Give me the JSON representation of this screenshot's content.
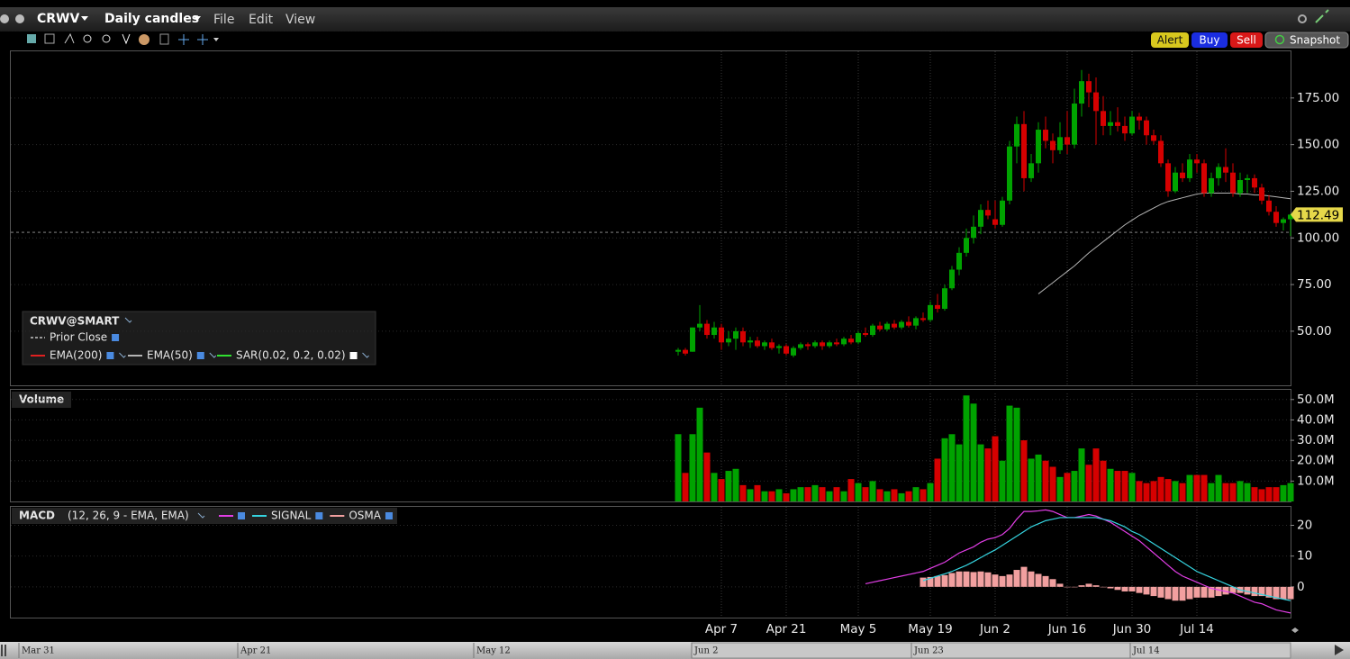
{
  "ui": {
    "symbol": "CRWV",
    "bar_type": "Daily candles",
    "menu": [
      "File",
      "Edit",
      "View"
    ],
    "buttons": [
      "Alert",
      "Buy",
      "Sell",
      "Snapshot"
    ],
    "navigator_labels": [
      "Mar 31",
      "Apr 21",
      "May 12",
      "Jun 2",
      "Jun 23",
      "Jul 14"
    ]
  },
  "chart_data": [
    {
      "type": "candlestick",
      "title": "CRWV@SMART",
      "categories": [
        null,
        null,
        null,
        null,
        null,
        null,
        "Apr 7",
        null,
        null,
        null,
        null,
        null,
        null,
        null,
        null,
        "Apr 21",
        null,
        null,
        null,
        null,
        null,
        null,
        null,
        null,
        null,
        "May 5",
        null,
        null,
        null,
        null,
        null,
        null,
        null,
        null,
        null,
        "May 19",
        null,
        null,
        null,
        null,
        null,
        null,
        null,
        null,
        "Jun 2",
        null,
        null,
        null,
        null,
        null,
        null,
        null,
        null,
        null,
        "Jun 16",
        null,
        null,
        null,
        null,
        null,
        null,
        null,
        null,
        "Jun 30",
        null,
        null,
        null,
        null,
        null,
        null,
        null,
        null,
        "Jul 14",
        null,
        null,
        null,
        null,
        null,
        null,
        null,
        null,
        null,
        null,
        null,
        null,
        null
      ],
      "open": [
        39,
        40,
        39,
        52,
        54,
        48,
        52,
        44,
        46,
        50,
        44,
        45,
        42,
        44,
        41,
        42,
        37,
        41,
        43,
        42,
        44,
        42,
        44,
        43,
        46,
        44,
        49,
        48,
        53,
        51,
        54,
        52,
        55,
        53,
        57,
        56,
        64,
        62,
        73,
        83,
        92,
        100,
        106,
        115,
        110,
        107,
        120,
        149,
        161,
        132,
        140,
        158,
        152,
        147,
        154,
        150,
        172,
        184,
        178,
        168,
        160,
        162,
        160,
        156,
        165,
        163,
        155,
        152,
        140,
        125,
        135,
        132,
        142,
        140,
        124,
        132,
        138,
        135,
        124,
        131,
        132,
        127,
        120,
        114,
        108,
        110
      ],
      "high": [
        41,
        41,
        52,
        64,
        56,
        55,
        54,
        50,
        52,
        52,
        47,
        47,
        45,
        46,
        43,
        43,
        42,
        44,
        44,
        45,
        45,
        45,
        46,
        47,
        48,
        50,
        52,
        54,
        55,
        55,
        56,
        56,
        58,
        58,
        60,
        66,
        70,
        75,
        85,
        95,
        105,
        112,
        118,
        120,
        120,
        122,
        152,
        165,
        168,
        145,
        162,
        165,
        156,
        162,
        168,
        180,
        190,
        188,
        186,
        176,
        168,
        170,
        165,
        168,
        167,
        165,
        158,
        155,
        142,
        138,
        140,
        145,
        145,
        142,
        135,
        140,
        148,
        140,
        135,
        134,
        134,
        129,
        123,
        117,
        111,
        113
      ],
      "low": [
        37,
        37,
        39,
        50,
        46,
        46,
        40,
        42,
        40,
        42,
        41,
        41,
        40,
        40,
        38,
        37,
        36,
        40,
        40,
        41,
        40,
        41,
        42,
        42,
        43,
        43,
        47,
        47,
        50,
        50,
        51,
        51,
        52,
        51,
        55,
        55,
        60,
        61,
        72,
        80,
        90,
        97,
        102,
        110,
        105,
        106,
        118,
        140,
        125,
        130,
        135,
        148,
        140,
        145,
        145,
        148,
        165,
        170,
        150,
        155,
        155,
        157,
        152,
        155,
        158,
        150,
        150,
        138,
        122,
        124,
        130,
        130,
        135,
        122,
        122,
        128,
        130,
        122,
        122,
        124,
        124,
        118,
        112,
        106,
        104,
        101
      ],
      "close": [
        40,
        38,
        52,
        54,
        48,
        52,
        44,
        46,
        50,
        44,
        45,
        42,
        44,
        41,
        42,
        38,
        41,
        43,
        42,
        44,
        42,
        44,
        43,
        46,
        44,
        49,
        48,
        53,
        51,
        54,
        52,
        55,
        53,
        57,
        56,
        64,
        62,
        73,
        83,
        92,
        100,
        106,
        115,
        112,
        107,
        120,
        149,
        161,
        132,
        140,
        158,
        152,
        147,
        154,
        150,
        172,
        184,
        178,
        168,
        160,
        162,
        160,
        156,
        165,
        163,
        155,
        152,
        140,
        125,
        135,
        132,
        142,
        140,
        124,
        132,
        138,
        135,
        124,
        131,
        132,
        127,
        120,
        114,
        108,
        110,
        112.49
      ],
      "up_color": "#00a300",
      "down_color": "#d60000",
      "last_price": 112.49,
      "last_price_color": "#e6d84a",
      "overlays": [
        {
          "name": "Prior Close",
          "color": "#9a9a9a",
          "value": 103
        },
        {
          "name": "EMA(200)",
          "color": "#e02020"
        },
        {
          "name": "EMA(50)",
          "color": "#b4b4b4",
          "values": [
            null,
            null,
            null,
            null,
            null,
            null,
            null,
            null,
            null,
            null,
            null,
            null,
            null,
            null,
            null,
            null,
            null,
            null,
            null,
            null,
            null,
            null,
            null,
            null,
            null,
            null,
            null,
            null,
            null,
            null,
            null,
            null,
            null,
            null,
            null,
            null,
            null,
            null,
            null,
            null,
            null,
            null,
            null,
            null,
            null,
            null,
            null,
            null,
            null,
            null,
            70,
            73,
            76,
            79,
            82,
            85,
            88.5,
            92,
            95,
            98,
            101,
            104,
            107,
            109.5,
            112,
            114,
            116,
            118,
            119.5,
            120.5,
            121.5,
            122.5,
            123.5,
            124,
            124,
            124,
            124,
            124,
            123.5,
            123.5,
            123,
            123,
            122.5,
            122,
            121.5,
            121
          ]
        },
        {
          "name": "SAR(0.02, 0.2, 0.02)",
          "color": "#30e030"
        }
      ],
      "ylim": [
        21,
        200
      ],
      "yticks": [
        {
          "value": 50,
          "label": "50.00"
        },
        {
          "value": 75,
          "label": "75.00"
        },
        {
          "value": 100,
          "label": "100.00"
        },
        {
          "value": 125,
          "label": "125.00"
        },
        {
          "value": 150,
          "label": "150.00"
        },
        {
          "value": 175,
          "label": "175.00"
        }
      ]
    },
    {
      "type": "bar",
      "title": "Volume",
      "values": [
        33000000,
        14000000,
        33000000,
        46000000,
        24000000,
        14000000,
        11000000,
        15000000,
        16000000,
        8000000,
        6000000,
        8000000,
        5000000,
        5000000,
        6000000,
        4000000,
        6000000,
        7000000,
        7000000,
        8000000,
        7000000,
        5000000,
        7000000,
        5000000,
        11000000,
        9000000,
        7000000,
        10000000,
        6000000,
        5000000,
        6000000,
        4000000,
        5000000,
        7000000,
        6000000,
        9000000,
        21000000,
        31000000,
        33000000,
        28000000,
        52000000,
        48000000,
        28000000,
        26000000,
        32000000,
        20000000,
        47000000,
        46000000,
        30000000,
        21000000,
        23000000,
        20000000,
        17000000,
        12000000,
        14000000,
        15000000,
        26000000,
        18000000,
        26000000,
        20000000,
        16000000,
        15000000,
        15000000,
        14000000,
        10000000,
        9000000,
        10000000,
        12000000,
        11000000,
        10000000,
        9000000,
        13000000,
        13000000,
        13000000,
        9000000,
        13000000,
        9000000,
        9000000,
        10000000,
        9000000,
        7000000,
        6000000,
        7000000,
        7000000,
        8000000,
        9000000
      ],
      "up_color": "#00a300",
      "down_color": "#d60000",
      "ylim": [
        0,
        53000000
      ],
      "yticks": [
        {
          "value": 10000000,
          "label": "10.0M"
        },
        {
          "value": 20000000,
          "label": "20.0M"
        },
        {
          "value": 30000000,
          "label": "30.0M"
        },
        {
          "value": 40000000,
          "label": "40.0M"
        },
        {
          "value": 50000000,
          "label": "50.0M"
        }
      ]
    },
    {
      "type": "line",
      "title": "MACD",
      "subtitle": "(12, 26, 9 - EMA, EMA)",
      "series": [
        {
          "color": "#e23ee6",
          "values": [
            null,
            null,
            null,
            null,
            null,
            null,
            null,
            null,
            null,
            null,
            null,
            null,
            null,
            null,
            null,
            null,
            null,
            null,
            null,
            null,
            null,
            null,
            null,
            null,
            null,
            null,
            1,
            1.5,
            2,
            2.5,
            3,
            3.5,
            4,
            4.5,
            5,
            6,
            7,
            8,
            9.5,
            11,
            12,
            13,
            14.5,
            15.5,
            16,
            17,
            19,
            22,
            24.5,
            24.5,
            24.7,
            25,
            24.5,
            23.5,
            22.5,
            22.5,
            23,
            23.5,
            23,
            22,
            21,
            19.5,
            18,
            16.5,
            15,
            13,
            11,
            9,
            7,
            5,
            3.5,
            2.5,
            1.5,
            0.5,
            -0.5,
            -1,
            -1.5,
            -2,
            -3,
            -4,
            -5,
            -5.5,
            -6.5,
            -7.5,
            -8,
            -8.5
          ]
        },
        {
          "name": "SIGNAL",
          "color": "#35d4e0",
          "values": [
            null,
            null,
            null,
            null,
            null,
            null,
            null,
            null,
            null,
            null,
            null,
            null,
            null,
            null,
            null,
            null,
            null,
            null,
            null,
            null,
            null,
            null,
            null,
            null,
            null,
            null,
            null,
            null,
            null,
            null,
            null,
            null,
            null,
            null,
            2,
            2.8,
            3.5,
            4.2,
            5,
            6,
            7,
            8.2,
            9.5,
            10.8,
            12,
            13.5,
            15,
            16.5,
            18,
            19.5,
            20.5,
            21.5,
            22,
            22.5,
            22.5,
            22.5,
            22.5,
            22.5,
            22.5,
            22,
            21.5,
            20.5,
            19.5,
            18,
            17,
            15.5,
            14,
            12.5,
            11,
            9.5,
            8,
            6.5,
            5,
            4,
            3,
            2,
            1,
            0,
            -1,
            -1.5,
            -2,
            -2.5,
            -3,
            -3.5,
            -4,
            -4.5
          ]
        },
        {
          "name": "OSMA",
          "color": "#f2a0a0",
          "type": "bar",
          "values": [
            null,
            null,
            null,
            null,
            null,
            null,
            null,
            null,
            null,
            null,
            null,
            null,
            null,
            null,
            null,
            null,
            null,
            null,
            null,
            null,
            null,
            null,
            null,
            null,
            null,
            null,
            null,
            null,
            null,
            null,
            null,
            null,
            null,
            null,
            3,
            3.2,
            3.5,
            3.8,
            4.5,
            5,
            5,
            4.8,
            5,
            4.7,
            4,
            3.5,
            4,
            5.5,
            6.5,
            5,
            4.2,
            3.5,
            2.5,
            1,
            0,
            0,
            0.5,
            1,
            0.5,
            0,
            -0.5,
            -1,
            -1.5,
            -1.5,
            -2,
            -2.5,
            -3,
            -3.5,
            -4,
            -4.5,
            -4.5,
            -4,
            -3.5,
            -3.5,
            -3.5,
            -3,
            -2.5,
            -2,
            -2,
            -2.5,
            -3,
            -3,
            -3.5,
            -4,
            -4,
            -4
          ]
        }
      ],
      "ylim": [
        -10,
        26
      ],
      "yticks": [
        0,
        10,
        20
      ]
    }
  ]
}
